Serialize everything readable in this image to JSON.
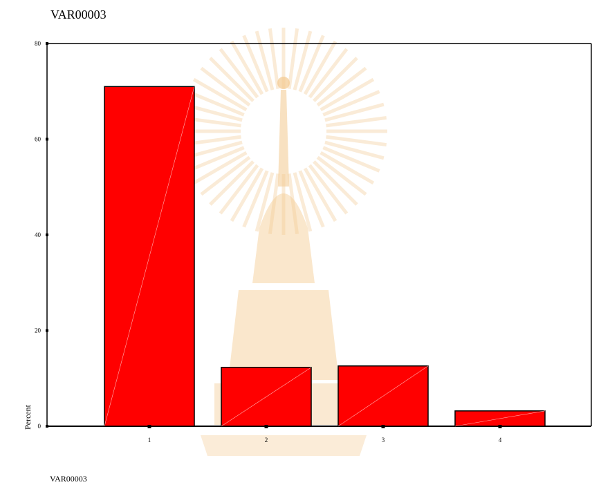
{
  "chart_data": {
    "type": "bar",
    "title": "VAR00003",
    "xlabel": "VAR00003",
    "ylabel": "Percent",
    "categories": [
      "1",
      "2",
      "3",
      "4"
    ],
    "values": [
      71.0,
      12.3,
      12.6,
      3.2
    ],
    "y_ticks": [
      "0",
      "20",
      "40",
      "60",
      "80"
    ],
    "ylim": [
      0,
      80
    ],
    "grid": false,
    "legend": "none",
    "colors": {
      "bar_fill": "#ff0000",
      "bar_stroke": "#000000",
      "axis": "#000000",
      "watermark": "#f6dcb8"
    }
  }
}
